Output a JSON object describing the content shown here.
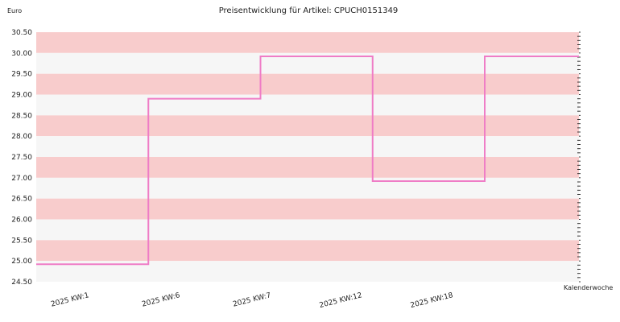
{
  "chart_data": {
    "type": "line",
    "title": "Preisentwicklung für Artikel: CPUCH0151349",
    "ylabel": "Euro",
    "xlabel": "Kalenderwoche",
    "ylim": [
      24.5,
      30.5
    ],
    "yticks": [
      "30.50",
      "30.00",
      "29.50",
      "29.00",
      "28.50",
      "28.00",
      "27.50",
      "27.00",
      "26.50",
      "26.00",
      "25.50",
      "25.00",
      "24.50"
    ],
    "categories": [
      "2025 KW:1",
      "2025 KW:6",
      "2025 KW:7",
      "2025 KW:12",
      "2025 KW:18"
    ],
    "series": [
      {
        "values": [
          24.92,
          28.9,
          29.92,
          26.92,
          29.92
        ]
      }
    ],
    "step": true,
    "grid": true,
    "colors": {
      "band": "#f8cccc",
      "alt_band": "#f6f6f6",
      "line": "#ef7cc6"
    }
  }
}
